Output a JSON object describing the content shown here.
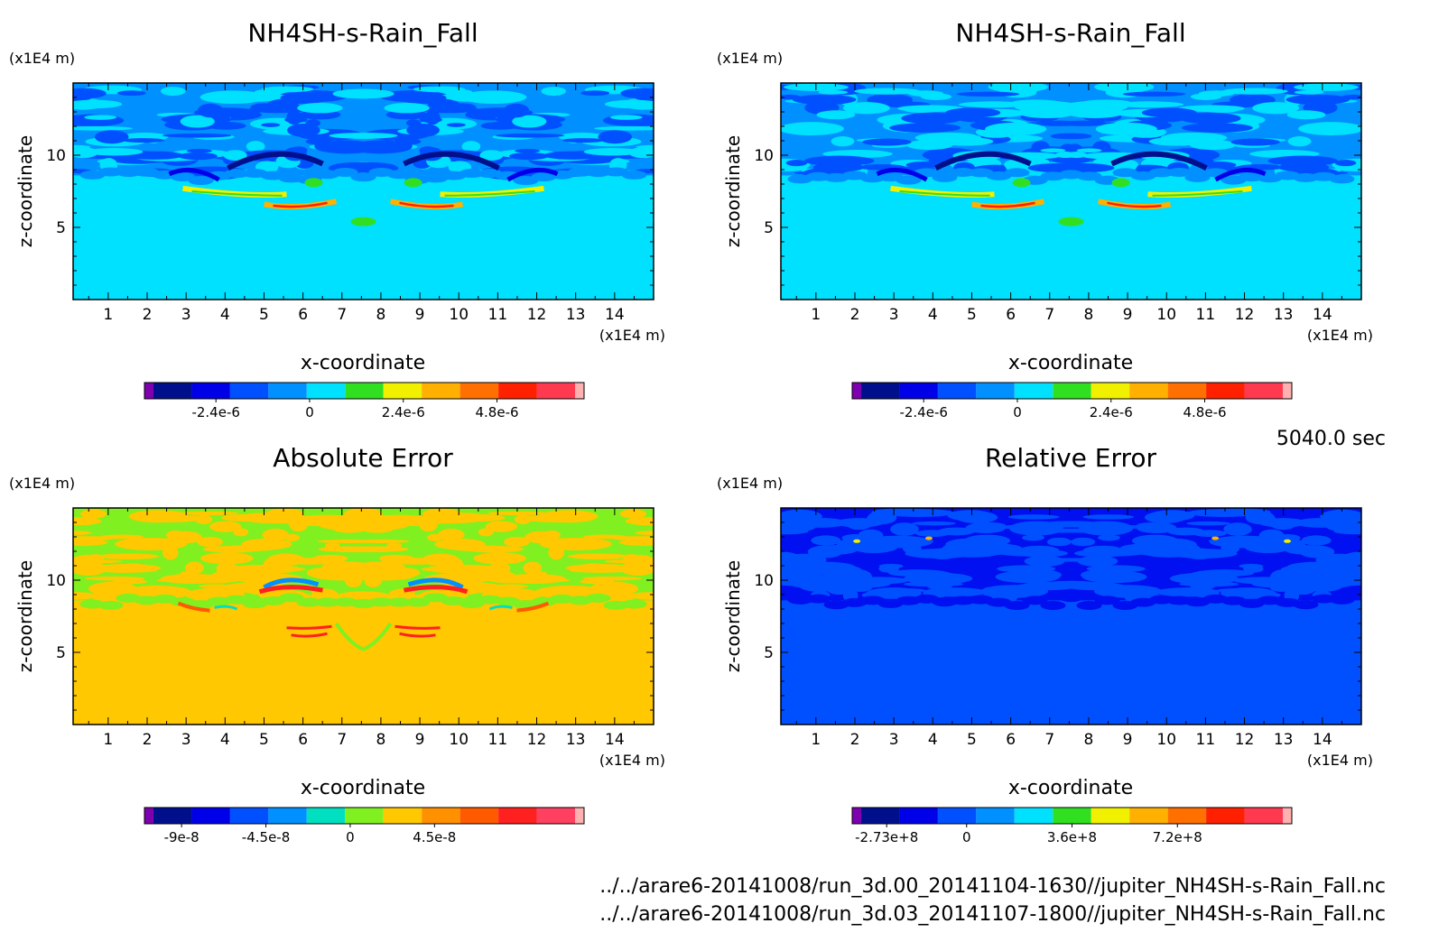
{
  "footer": {
    "time_label": "5040.0 sec",
    "file_a": "../../arare6-20141008/run_3d.00_20141104-1630//jupiter_NH4SH-s-Rain_Fall.nc",
    "file_b": "../../arare6-20141008/run_3d.03_20141107-1800//jupiter_NH4SH-s-Rain_Fall.nc"
  },
  "chart_data": [
    {
      "type": "heatmap",
      "title": "NH4SH-s-Rain_Fall",
      "xlabel": "x-coordinate",
      "ylabel": "z-coordinate",
      "x_unit": "(x1E4 m)",
      "y_unit": "(x1E4 m)",
      "xlim": [
        0.1,
        15
      ],
      "ylim": [
        0,
        15
      ],
      "xticks": [
        1,
        2,
        3,
        4,
        5,
        6,
        7,
        8,
        9,
        10,
        11,
        12,
        13,
        14
      ],
      "yticks": [
        5,
        10
      ],
      "colorbar": {
        "colors": [
          "#7f00b0",
          "#00108c",
          "#0000e8",
          "#0050ff",
          "#0090ff",
          "#00e0ff",
          "#30e020",
          "#f0f000",
          "#ffb000",
          "#ff7000",
          "#ff2000",
          "#ff3a50",
          "#ffb0b0"
        ],
        "tick_values": [
          -2.4e-06,
          0,
          2.4e-06,
          4.8e-06
        ],
        "tick_labels": [
          "-2.4e-6",
          "0",
          "2.4e-6",
          "4.8e-6"
        ],
        "range": [
          -4e-06,
          6.8e-06
        ]
      },
      "field": {
        "background": "#00e0ff",
        "noise": "#0090ff",
        "noise2": "#0050ff",
        "features": "rain"
      }
    },
    {
      "type": "heatmap",
      "title": "NH4SH-s-Rain_Fall",
      "xlabel": "x-coordinate",
      "ylabel": "z-coordinate",
      "x_unit": "(x1E4 m)",
      "y_unit": "(x1E4 m)",
      "xlim": [
        0.1,
        15
      ],
      "ylim": [
        0,
        15
      ],
      "xticks": [
        1,
        2,
        3,
        4,
        5,
        6,
        7,
        8,
        9,
        10,
        11,
        12,
        13,
        14
      ],
      "yticks": [
        5,
        10
      ],
      "colorbar": {
        "colors": [
          "#7f00b0",
          "#00108c",
          "#0000e8",
          "#0050ff",
          "#0090ff",
          "#00e0ff",
          "#30e020",
          "#f0f000",
          "#ffb000",
          "#ff7000",
          "#ff2000",
          "#ff3a50",
          "#ffb0b0"
        ],
        "tick_values": [
          -2.4e-06,
          0,
          2.4e-06,
          4.8e-06
        ],
        "tick_labels": [
          "-2.4e-6",
          "0",
          "2.4e-6",
          "4.8e-6"
        ],
        "range": [
          -4e-06,
          6.8e-06
        ]
      },
      "field": {
        "background": "#00e0ff",
        "noise": "#0090ff",
        "noise2": "#0050ff",
        "features": "rain"
      }
    },
    {
      "type": "heatmap",
      "title": "Absolute Error",
      "xlabel": "x-coordinate",
      "ylabel": "z-coordinate",
      "x_unit": "(x1E4 m)",
      "y_unit": "(x1E4 m)",
      "xlim": [
        0.1,
        15
      ],
      "ylim": [
        0,
        15
      ],
      "xticks": [
        1,
        2,
        3,
        4,
        5,
        6,
        7,
        8,
        9,
        10,
        11,
        12,
        13,
        14
      ],
      "yticks": [
        5,
        10
      ],
      "colorbar": {
        "colors": [
          "#7f00b0",
          "#00108c",
          "#0000e8",
          "#0050ff",
          "#0090ff",
          "#00e0c0",
          "#80f020",
          "#ffc800",
          "#ff9000",
          "#ff5a00",
          "#ff2020",
          "#ff4060",
          "#ffb0b0"
        ],
        "tick_values": [
          -9e-08,
          -4.5e-08,
          0,
          4.5e-08
        ],
        "tick_labels": [
          "-9e-8",
          "-4.5e-8",
          "0",
          "4.5e-8"
        ],
        "range": [
          -1.05e-07,
          1.2e-07
        ]
      },
      "field": {
        "background": "#ffc800",
        "noise": "#80f020",
        "noise2": "#ffc800",
        "features": "abs"
      }
    },
    {
      "type": "heatmap",
      "title": "Relative Error",
      "xlabel": "x-coordinate",
      "ylabel": "z-coordinate",
      "x_unit": "(x1E4 m)",
      "y_unit": "(x1E4 m)",
      "xlim": [
        0.1,
        15
      ],
      "ylim": [
        0,
        15
      ],
      "xticks": [
        1,
        2,
        3,
        4,
        5,
        6,
        7,
        8,
        9,
        10,
        11,
        12,
        13,
        14
      ],
      "yticks": [
        5,
        10
      ],
      "colorbar": {
        "colors": [
          "#7f00b0",
          "#00108c",
          "#0000e8",
          "#0050ff",
          "#0090ff",
          "#00e0ff",
          "#30e020",
          "#f0f000",
          "#ffb000",
          "#ff7000",
          "#ff2000",
          "#ff3a50",
          "#ffb0b0"
        ],
        "tick_values": [
          -273000000.0,
          0,
          360000000.0,
          720000000.0
        ],
        "tick_labels": [
          "-2.73e+8",
          "0",
          "3.6e+8",
          "7.2e+8"
        ],
        "range": [
          -360000000.0,
          1080000000.0
        ]
      },
      "field": {
        "background": "#0050ff",
        "noise": "#0010f0",
        "noise2": "#0050ff",
        "features": "rel"
      }
    }
  ]
}
